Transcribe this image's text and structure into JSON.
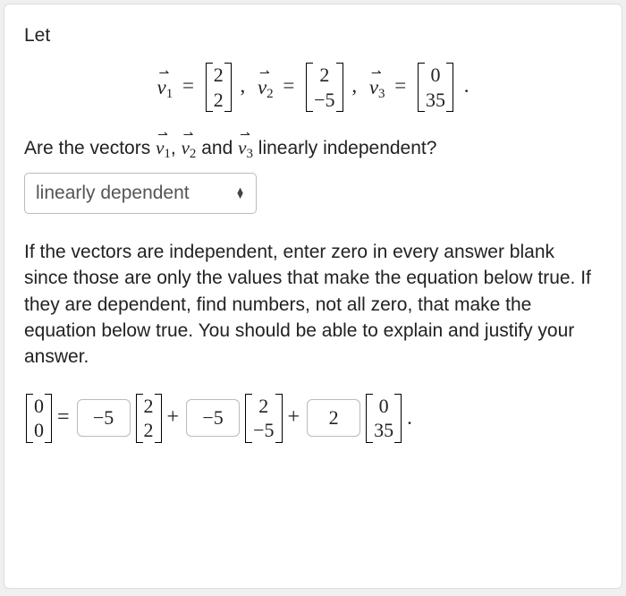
{
  "let": "Let",
  "v": {
    "sym": "v",
    "s1": "1",
    "s2": "2",
    "s3": "3",
    "eq": "="
  },
  "m": {
    "v1": [
      "2",
      "2"
    ],
    "v2": [
      "2",
      "−5"
    ],
    "v3": [
      "0",
      "35"
    ],
    "zero": [
      "0",
      "0"
    ]
  },
  "comma": ",",
  "period": ".",
  "question": {
    "p1": "Are the vectors ",
    "p2": ", ",
    "p3": " and ",
    "p4": " linearly independent?"
  },
  "select": {
    "value": "linearly dependent"
  },
  "instructions": "If the vectors are independent, enter zero in every answer blank since those are only the values that make the equation below true. If they are dependent, find numbers, not all zero, that make the equation below true. You should be able to explain and justify your answer.",
  "inputs": {
    "c1": "−5",
    "c2": "−5",
    "c3": "2"
  },
  "ops": {
    "eq": "=",
    "plus": "+"
  }
}
